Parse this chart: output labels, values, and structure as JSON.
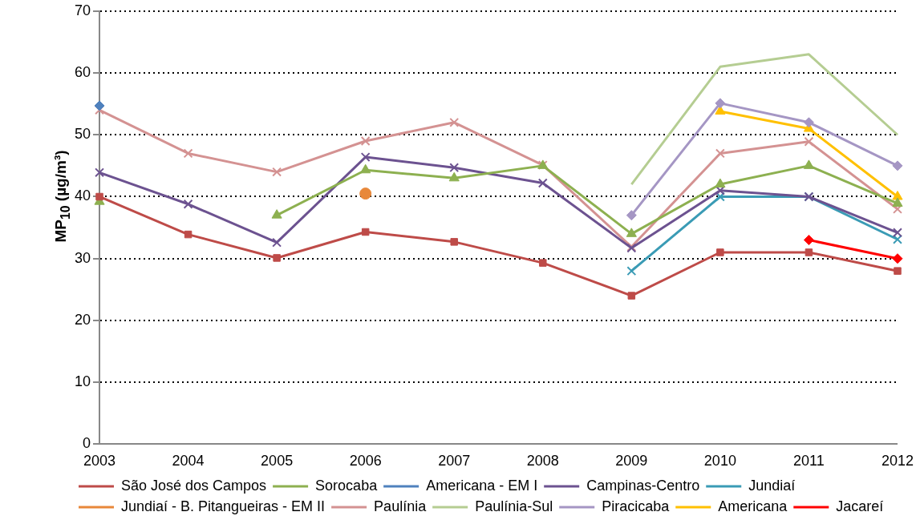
{
  "chart_data": {
    "type": "line",
    "ylabel": "MP$_{10}$ (µg/m³)",
    "categories": [
      "2003",
      "2004",
      "2005",
      "2006",
      "2007",
      "2008",
      "2009",
      "2010",
      "2011",
      "2012"
    ],
    "ylim": [
      0,
      70
    ],
    "yticks": [
      0,
      10,
      20,
      30,
      40,
      50,
      60,
      70
    ],
    "grid": "y",
    "legend": "bottom",
    "line_style": "solid",
    "series": [
      {
        "name": "São José dos Campos",
        "color": "#be4b48",
        "marker": "square",
        "values": [
          40,
          33.9,
          30.1,
          34.3,
          32.7,
          29.3,
          24,
          31,
          31,
          28
        ]
      },
      {
        "name": "Sorocaba",
        "color": "#8db050",
        "marker": "triangle",
        "values": [
          39.2,
          null,
          37,
          44.3,
          43,
          45,
          34,
          42,
          45,
          38.9
        ]
      },
      {
        "name": "Americana - EM I",
        "color": "#4f81bd",
        "marker": "diamond",
        "values": [
          54.7,
          null,
          null,
          null,
          null,
          null,
          null,
          null,
          null,
          null
        ]
      },
      {
        "name": "Campinas-Centro",
        "color": "#6c5290",
        "marker": "cross",
        "values": [
          43.9,
          38.8,
          32.6,
          46.4,
          44.7,
          42.2,
          31.7,
          41,
          40,
          34.2
        ]
      },
      {
        "name": "Jundiaí",
        "color": "#3a9bb5",
        "marker": "cross",
        "values": [
          null,
          null,
          null,
          null,
          null,
          null,
          28,
          40,
          40,
          33.1
        ]
      },
      {
        "name": "Jundiaí - B. Pitangueiras - EM II",
        "color": "#e8883a",
        "marker": "circle",
        "values": [
          null,
          null,
          null,
          40.5,
          null,
          null,
          null,
          null,
          null,
          null
        ]
      },
      {
        "name": "Paulínia",
        "color": "#d49292",
        "marker": "cross",
        "values": [
          54,
          47,
          44,
          49,
          52,
          45.1,
          31.9,
          47,
          48.9,
          38
        ]
      },
      {
        "name": "Paulínia-Sul",
        "color": "#b5cd92",
        "marker": "none",
        "values": [
          null,
          null,
          null,
          null,
          null,
          null,
          42,
          61,
          63,
          50
        ]
      },
      {
        "name": "Piracicaba",
        "color": "#a596c4",
        "marker": "diamond",
        "values": [
          null,
          null,
          null,
          null,
          null,
          null,
          37,
          55.1,
          52,
          45
        ]
      },
      {
        "name": "Americana",
        "color": "#ffc000",
        "marker": "triangle",
        "values": [
          null,
          null,
          null,
          null,
          null,
          null,
          null,
          53.8,
          51,
          40
        ]
      },
      {
        "name": "Jacareí",
        "color": "#ff0000",
        "marker": "diamond",
        "values": [
          null,
          null,
          null,
          null,
          null,
          null,
          null,
          null,
          33,
          30
        ]
      }
    ]
  }
}
